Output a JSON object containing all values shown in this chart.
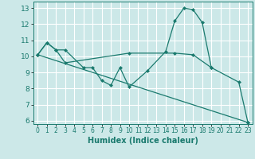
{
  "xlabel": "Humidex (Indice chaleur)",
  "background_color": "#cce8e8",
  "grid_color": "#ffffff",
  "line_color": "#1a7a6e",
  "xlim": [
    -0.5,
    23.5
  ],
  "ylim": [
    5.8,
    13.4
  ],
  "xticks": [
    0,
    1,
    2,
    3,
    4,
    5,
    6,
    7,
    8,
    9,
    10,
    11,
    12,
    13,
    14,
    15,
    16,
    17,
    18,
    19,
    20,
    21,
    22,
    23
  ],
  "yticks": [
    6,
    7,
    8,
    9,
    10,
    11,
    12,
    13
  ],
  "series": [
    {
      "x": [
        0,
        1,
        2,
        3,
        10,
        15,
        17,
        19
      ],
      "y": [
        10.1,
        10.85,
        10.4,
        9.6,
        10.2,
        10.2,
        10.1,
        9.3
      ]
    },
    {
      "x": [
        0,
        1,
        2,
        3,
        5,
        6,
        7,
        8,
        9,
        10,
        12,
        14,
        15,
        16,
        17,
        18,
        19,
        22,
        23
      ],
      "y": [
        10.1,
        10.85,
        10.4,
        10.4,
        9.3,
        9.3,
        8.5,
        8.2,
        9.3,
        8.1,
        9.1,
        10.3,
        12.2,
        13.0,
        12.9,
        12.1,
        9.3,
        8.4,
        5.9
      ]
    },
    {
      "x": [
        0,
        23
      ],
      "y": [
        10.1,
        5.9
      ]
    }
  ]
}
